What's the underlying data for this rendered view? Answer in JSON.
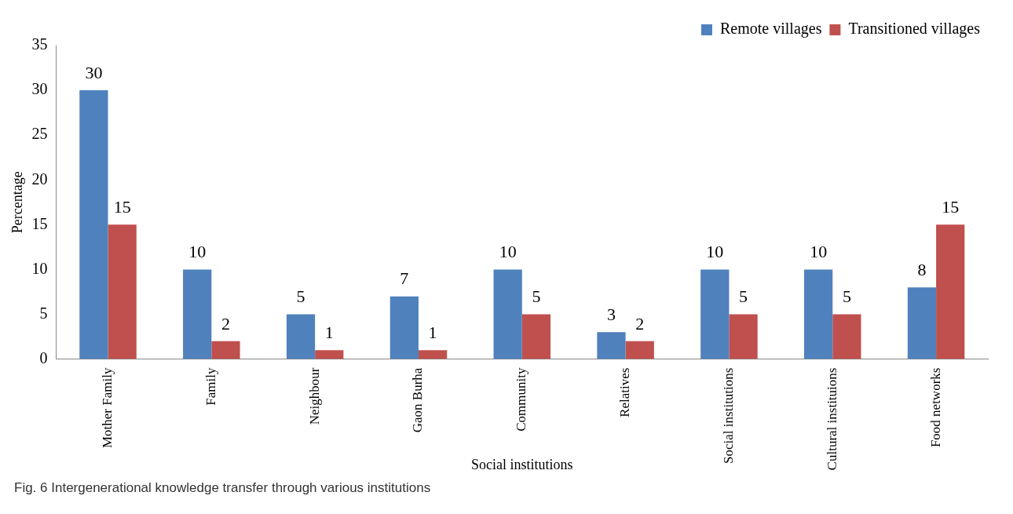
{
  "chart_data": {
    "type": "bar",
    "xlabel": "Social institutions",
    "ylabel": "Percentage",
    "categories": [
      "Mother Family",
      "Family",
      "Neighbour",
      "Gaon Burha",
      "Community",
      "Relatives",
      "Social institutions",
      "Cultural instituions",
      "Food networks"
    ],
    "series": [
      {
        "name": "Remote villages",
        "color": "#4f81bd",
        "values": [
          30,
          10,
          5,
          7,
          10,
          3,
          10,
          10,
          8
        ]
      },
      {
        "name": "Transitioned villages",
        "color": "#c0504d",
        "values": [
          15,
          2,
          1,
          1,
          5,
          2,
          5,
          5,
          15
        ]
      }
    ],
    "ylim": [
      0,
      35
    ],
    "yticks": [
      0,
      5,
      10,
      15,
      20,
      25,
      30,
      35
    ],
    "grid": false,
    "legend": "top right",
    "data_labels": true,
    "annotations": [
      "Fig. 6 Intergenerational knowledge transfer through various institutions"
    ]
  }
}
